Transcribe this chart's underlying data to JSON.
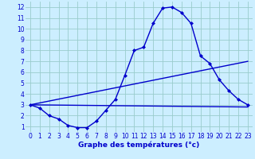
{
  "xlabel": "Graphe des températures (°c)",
  "bg_color": "#cceeff",
  "line_color": "#0000cc",
  "grid_color": "#99cccc",
  "xlim": [
    -0.5,
    23.5
  ],
  "ylim": [
    0.5,
    12.5
  ],
  "xticks": [
    0,
    1,
    2,
    3,
    4,
    5,
    6,
    7,
    8,
    9,
    10,
    11,
    12,
    13,
    14,
    15,
    16,
    17,
    18,
    19,
    20,
    21,
    22,
    23
  ],
  "yticks": [
    1,
    2,
    3,
    4,
    5,
    6,
    7,
    8,
    9,
    10,
    11,
    12
  ],
  "line1_x": [
    0,
    1,
    2,
    3,
    4,
    5,
    6,
    7,
    8,
    9,
    10,
    11,
    12,
    13,
    14,
    15,
    16,
    17,
    18,
    19,
    20,
    21,
    22,
    23
  ],
  "line1_y": [
    3.0,
    2.7,
    2.0,
    1.7,
    1.1,
    0.9,
    0.9,
    1.5,
    2.5,
    3.5,
    5.7,
    8.0,
    8.3,
    10.5,
    11.9,
    12.0,
    11.5,
    10.5,
    7.5,
    6.8,
    5.3,
    4.3,
    3.5,
    3.0
  ],
  "line2_x": [
    0,
    23
  ],
  "line2_y": [
    3.0,
    2.8
  ],
  "line3_x": [
    0,
    23
  ],
  "line3_y": [
    3.0,
    7.0
  ],
  "marker": "D",
  "markersize": 2,
  "linewidth": 1.0,
  "tick_fontsize": 5.5,
  "xlabel_fontsize": 6.5
}
